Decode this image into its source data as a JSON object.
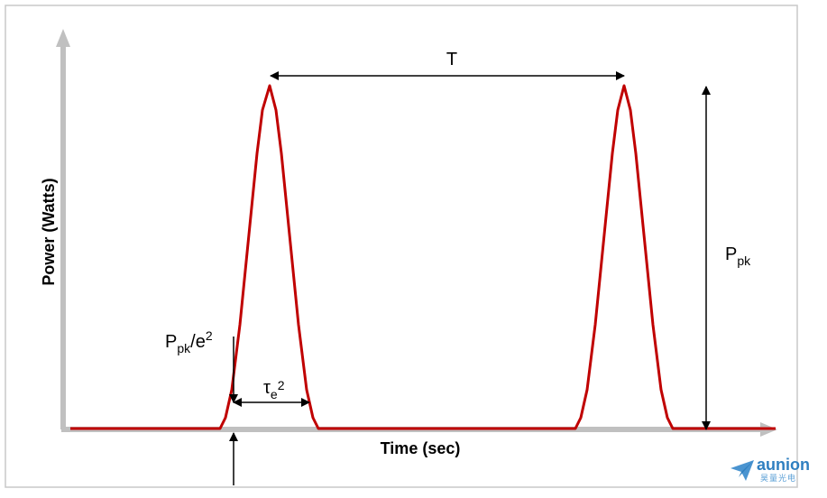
{
  "diagram": {
    "x_axis_label": "Time (sec)",
    "y_axis_label": "Power (Watts)",
    "period_label": "T",
    "peak_label": {
      "base": "P",
      "sub": "pk"
    },
    "threshold_label": {
      "base": "P",
      "sub": "pk",
      "tail": "/e",
      "sup": "2"
    },
    "width_label": {
      "base": "τ",
      "sub": "e",
      "sup": "2"
    },
    "colors": {
      "pulse": "#c00000",
      "axis": "#c0c0c0",
      "annotation": "#000000",
      "frame": "#c8c8c8"
    }
  },
  "logo": {
    "name": "aunion",
    "tagline": "昊量光电"
  }
}
